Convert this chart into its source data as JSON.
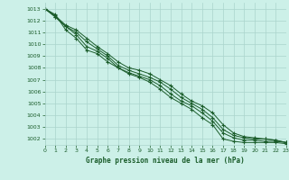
{
  "title": "Graphe pression niveau de la mer (hPa)",
  "background_color": "#ccf0e8",
  "grid_color": "#aad4cc",
  "line_color": "#1a5c2a",
  "x_range": [
    0,
    23
  ],
  "y_range": [
    1001.5,
    1013.5
  ],
  "y_ticks": [
    1002,
    1003,
    1004,
    1005,
    1006,
    1007,
    1008,
    1009,
    1010,
    1011,
    1012,
    1013
  ],
  "x_ticks": [
    0,
    1,
    2,
    3,
    4,
    5,
    6,
    7,
    8,
    9,
    10,
    11,
    12,
    13,
    14,
    15,
    16,
    17,
    18,
    19,
    20,
    21,
    22,
    23
  ],
  "series": [
    [
      1013.0,
      1012.5,
      1011.2,
      1010.5,
      1009.5,
      1009.2,
      1008.5,
      1008.0,
      1007.5,
      1007.2,
      1006.8,
      1006.2,
      1005.5,
      1005.0,
      1004.5,
      1003.8,
      1003.2,
      1002.0,
      1001.8,
      1001.7,
      1001.7,
      1001.7,
      1001.7,
      1001.6
    ],
    [
      1013.0,
      1012.3,
      1011.5,
      1010.8,
      1009.8,
      1009.4,
      1008.8,
      1008.0,
      1007.6,
      1007.3,
      1007.0,
      1006.5,
      1005.8,
      1005.2,
      1004.8,
      1004.2,
      1003.5,
      1002.5,
      1002.1,
      1001.9,
      1001.9,
      1001.8,
      1001.8,
      1001.7
    ],
    [
      1013.0,
      1012.3,
      1011.5,
      1011.0,
      1010.2,
      1009.6,
      1009.0,
      1008.2,
      1007.8,
      1007.5,
      1007.2,
      1006.8,
      1006.2,
      1005.5,
      1005.0,
      1004.5,
      1003.8,
      1002.8,
      1002.3,
      1002.1,
      1002.0,
      1002.0,
      1001.9,
      1001.7
    ],
    [
      1013.0,
      1012.4,
      1011.6,
      1011.2,
      1010.5,
      1009.8,
      1009.2,
      1008.5,
      1008.0,
      1007.8,
      1007.5,
      1007.0,
      1006.5,
      1005.8,
      1005.2,
      1004.8,
      1004.2,
      1003.2,
      1002.5,
      1002.2,
      1002.1,
      1002.0,
      1001.9,
      1001.7
    ]
  ]
}
